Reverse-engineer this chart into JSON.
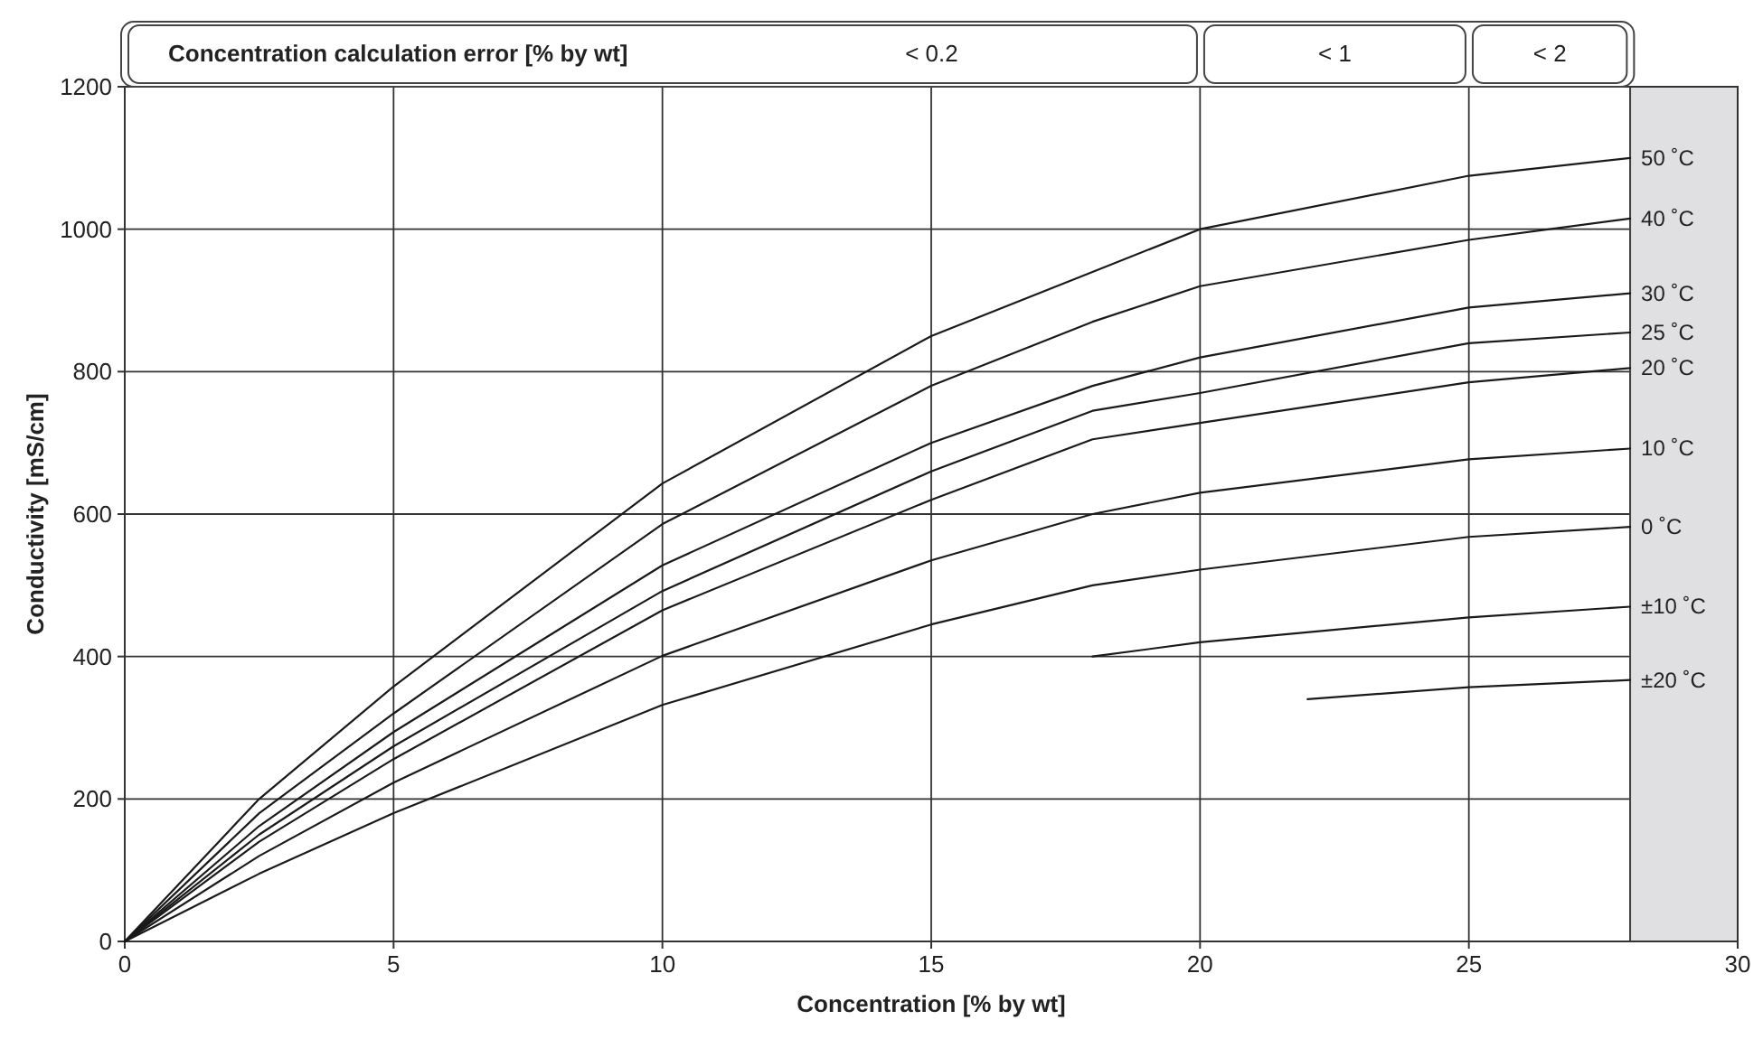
{
  "chart_data": {
    "type": "line",
    "xlabel": "Concentration [% by wt]",
    "ylabel": "Conductivity [mS/cm]",
    "xlim": [
      0,
      30
    ],
    "xticks": [
      0,
      5,
      10,
      15,
      20,
      25,
      30
    ],
    "ylim": [
      0,
      1200
    ],
    "yticks": [
      0,
      200,
      400,
      600,
      800,
      1000,
      1200
    ],
    "grid": true,
    "marker": "none",
    "line_style": "solid",
    "bands": [
      {
        "axis": "x",
        "from": 28,
        "to": 30,
        "color": "#e0e0e2"
      }
    ],
    "annotations": [
      "Concentration calculation error [% by wt]",
      "< 0.2",
      "< 1",
      "< 2"
    ],
    "series": [
      {
        "name": "50 ˚C",
        "color": "#1a1a1a",
        "x": [
          0,
          2.5,
          5,
          10,
          15,
          18,
          20,
          25,
          28
        ],
        "values": [
          0,
          200,
          358,
          643,
          850,
          940,
          1000,
          1075,
          1100
        ]
      },
      {
        "name": "40 ˚C",
        "color": "#1a1a1a",
        "x": [
          0,
          2.5,
          5,
          10,
          15,
          18,
          20,
          25,
          28
        ],
        "values": [
          0,
          180,
          320,
          586,
          780,
          870,
          920,
          985,
          1015
        ]
      },
      {
        "name": "30 ˚C",
        "color": "#1a1a1a",
        "x": [
          0,
          2.5,
          5,
          10,
          15,
          18,
          20,
          25,
          28
        ],
        "values": [
          0,
          162,
          294,
          528,
          700,
          780,
          820,
          890,
          910
        ]
      },
      {
        "name": "25 ˚C",
        "color": "#1a1a1a",
        "x": [
          0,
          2.5,
          5,
          10,
          15,
          18,
          20,
          25,
          28
        ],
        "values": [
          0,
          150,
          274,
          492,
          660,
          745,
          770,
          840,
          855
        ]
      },
      {
        "name": "20 ˚C",
        "color": "#1a1a1a",
        "x": [
          0,
          2.5,
          5,
          10,
          15,
          18,
          20,
          25,
          28
        ],
        "values": [
          0,
          140,
          256,
          465,
          620,
          705,
          728,
          785,
          805
        ]
      },
      {
        "name": "10 ˚C",
        "color": "#1a1a1a",
        "x": [
          0,
          2.5,
          5,
          10,
          15,
          18,
          20,
          25,
          28
        ],
        "values": [
          0,
          120,
          223,
          401,
          535,
          600,
          630,
          677,
          692
        ]
      },
      {
        "name": "0 ˚C",
        "color": "#1a1a1a",
        "x": [
          0,
          2.5,
          5,
          10,
          15,
          18,
          20,
          25,
          28
        ],
        "values": [
          0,
          95,
          180,
          332,
          445,
          500,
          522,
          568,
          582
        ]
      },
      {
        "name": "±10 ˚C",
        "color": "#1a1a1a",
        "x": [
          18,
          20,
          25,
          28
        ],
        "values": [
          400,
          420,
          455,
          470
        ]
      },
      {
        "name": "±20 ˚C",
        "color": "#1a1a1a",
        "x": [
          22,
          25,
          28
        ],
        "values": [
          340,
          357,
          367
        ]
      }
    ]
  }
}
